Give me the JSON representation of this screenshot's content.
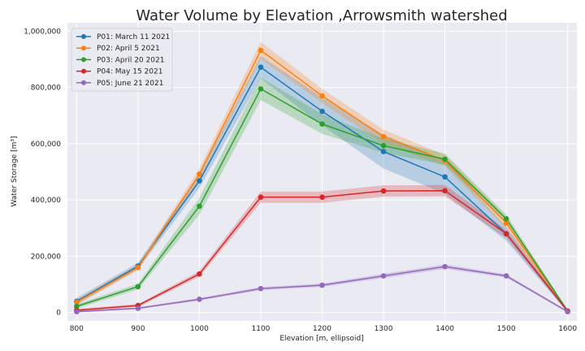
{
  "chart_data": {
    "type": "line",
    "title": "Water Volume by Elevation ,Arrowsmith watershed",
    "xlabel": "Elevation [m, ellipsoid]",
    "ylabel": "Water Storage [m³]",
    "x": [
      800,
      900,
      1000,
      1100,
      1200,
      1300,
      1400,
      1500,
      1600
    ],
    "xlim": [
      785,
      1615
    ],
    "ylim": [
      -30000,
      1030000
    ],
    "xticks": [
      "800",
      "900",
      "1000",
      "1100",
      "1200",
      "1300",
      "1400",
      "1500",
      "1600"
    ],
    "yticks": [
      "0",
      "200,000",
      "400,000",
      "600,000",
      "800,000",
      "1,000,000"
    ],
    "grid": true,
    "background": "#eaeaf2",
    "legend_position": "top-left",
    "series": [
      {
        "name": "P01: March 11 2021",
        "color": "#1f77b4",
        "values": [
          40000,
          165000,
          468000,
          872000,
          715000,
          572000,
          482000,
          280000,
          5000
        ],
        "band": [
          12000,
          12000,
          25000,
          40000,
          50000,
          60000,
          60000,
          25000,
          5000
        ]
      },
      {
        "name": "P02: April 5 2021",
        "color": "#ff7f0e",
        "values": [
          37000,
          160000,
          492000,
          932000,
          770000,
          625000,
          540000,
          318000,
          5000
        ],
        "band": [
          10000,
          10000,
          20000,
          30000,
          25000,
          25000,
          20000,
          20000,
          5000
        ]
      },
      {
        "name": "P03: April 20 2021",
        "color": "#2ca02c",
        "values": [
          22000,
          92000,
          378000,
          795000,
          670000,
          593000,
          545000,
          333000,
          5000
        ],
        "band": [
          8000,
          10000,
          30000,
          40000,
          35000,
          25000,
          20000,
          15000,
          5000
        ]
      },
      {
        "name": "P04: May 15 2021",
        "color": "#d62728",
        "values": [
          8000,
          25000,
          137000,
          410000,
          410000,
          432000,
          433000,
          280000,
          5000
        ],
        "band": [
          5000,
          5000,
          10000,
          20000,
          20000,
          20000,
          20000,
          15000,
          5000
        ]
      },
      {
        "name": "P05: June 21 2021",
        "color": "#9467bd",
        "values": [
          3000,
          15000,
          47000,
          85000,
          97000,
          130000,
          163000,
          130000,
          3000
        ],
        "band": [
          3000,
          3000,
          5000,
          6000,
          6000,
          8000,
          8000,
          6000,
          3000
        ]
      }
    ]
  }
}
